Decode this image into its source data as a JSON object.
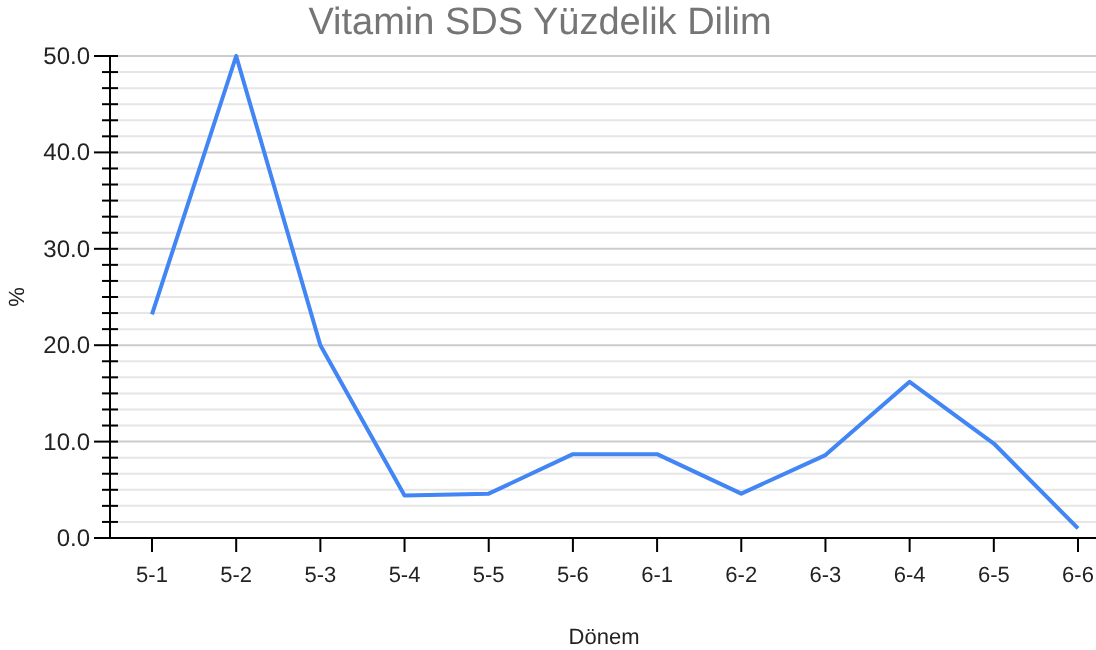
{
  "chart_data": {
    "type": "line",
    "title": "Vitamin SDS Yüzdelik Dilim",
    "xlabel": "Dönem",
    "ylabel": "%",
    "categories": [
      "5-1",
      "5-2",
      "5-3",
      "5-4",
      "5-5",
      "5-6",
      "6-1",
      "6-2",
      "6-3",
      "6-4",
      "6-5",
      "6-6"
    ],
    "series": [
      {
        "color": "#4285f4",
        "values": [
          23.2,
          50,
          20,
          4.4,
          4.6,
          8.7,
          8.7,
          4.6,
          8.6,
          16.2,
          9.8,
          1.0
        ]
      }
    ],
    "ylim": [
      0,
      50
    ],
    "yticks": [
      {
        "value": 0,
        "label": "0.0"
      },
      {
        "value": 1.667,
        "label": null
      },
      {
        "value": 3.333,
        "label": null
      },
      {
        "value": 5,
        "label": null
      },
      {
        "value": 6.667,
        "label": null
      },
      {
        "value": 8.333,
        "label": null
      },
      {
        "value": 10,
        "label": "10.0"
      },
      {
        "value": 11.667,
        "label": null
      },
      {
        "value": 13.333,
        "label": null
      },
      {
        "value": 15,
        "label": null
      },
      {
        "value": 16.667,
        "label": null
      },
      {
        "value": 18.333,
        "label": null
      },
      {
        "value": 20,
        "label": "20.0"
      },
      {
        "value": 21.667,
        "label": null
      },
      {
        "value": 23.333,
        "label": null
      },
      {
        "value": 25,
        "label": null
      },
      {
        "value": 26.667,
        "label": null
      },
      {
        "value": 28.333,
        "label": null
      },
      {
        "value": 30,
        "label": "30.0"
      },
      {
        "value": 31.667,
        "label": null
      },
      {
        "value": 33.333,
        "label": null
      },
      {
        "value": 35,
        "label": null
      },
      {
        "value": 36.667,
        "label": null
      },
      {
        "value": 38.333,
        "label": null
      },
      {
        "value": 40,
        "label": "40.0"
      },
      {
        "value": 41.667,
        "label": null
      },
      {
        "value": 43.333,
        "label": null
      },
      {
        "value": 45,
        "label": null
      },
      {
        "value": 46.667,
        "label": null
      },
      {
        "value": 48.333,
        "label": null
      },
      {
        "value": 50,
        "label": "50.0"
      }
    ],
    "grid": true,
    "marker": "none",
    "line_style": "solid"
  }
}
